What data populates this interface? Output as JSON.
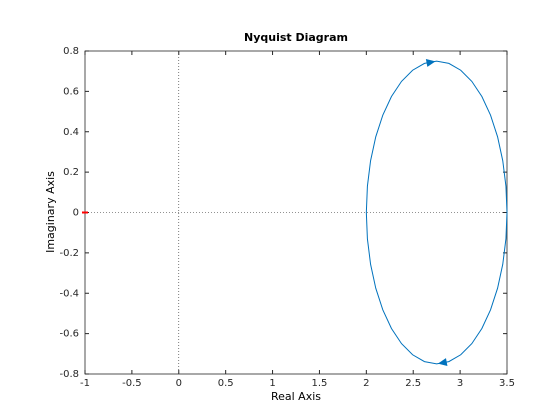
{
  "chart_data": {
    "type": "line",
    "title": "Nyquist Diagram",
    "xlabel": "Real Axis",
    "ylabel": "Imaginary Axis",
    "xlim": [
      -1,
      3.5
    ],
    "ylim": [
      -0.8,
      0.8
    ],
    "xticks": [
      -1,
      -0.5,
      0,
      0.5,
      1,
      1.5,
      2,
      2.5,
      3,
      3.5
    ],
    "yticks": [
      -0.8,
      -0.6,
      -0.4,
      -0.2,
      0,
      0.2,
      0.4,
      0.6,
      0.8
    ],
    "critical_point": {
      "x": -1,
      "y": 0,
      "color": "#ff0000"
    },
    "series": [
      {
        "color": "#0072bd",
        "x": [
          3.5,
          3.4886,
          3.4548,
          3.3995,
          3.3245,
          3.2321,
          3.125,
          3.0065,
          2.8802,
          2.75,
          2.6198,
          2.4935,
          2.375,
          2.2679,
          2.1755,
          2.1005,
          2.0452,
          2.0114,
          2.0,
          2.0114,
          2.0452,
          2.1005,
          2.1755,
          2.2679,
          2.375,
          2.4935,
          2.6198,
          2.75,
          2.8802,
          3.0065,
          3.125,
          3.2321,
          3.3245,
          3.3995,
          3.4548,
          3.4886,
          3.5
        ],
        "values": [
          0,
          -0.1302,
          -0.2565,
          -0.375,
          -0.4821,
          -0.5745,
          -0.6495,
          -0.7048,
          -0.7386,
          -0.75,
          -0.7386,
          -0.7048,
          -0.6495,
          -0.5745,
          -0.4821,
          -0.375,
          -0.2565,
          -0.1302,
          0,
          0.1302,
          0.2565,
          0.375,
          0.4821,
          0.5745,
          0.6495,
          0.7048,
          0.7386,
          0.75,
          0.7386,
          0.7048,
          0.6495,
          0.5745,
          0.4821,
          0.375,
          0.2565,
          0.1302,
          0
        ]
      }
    ]
  }
}
